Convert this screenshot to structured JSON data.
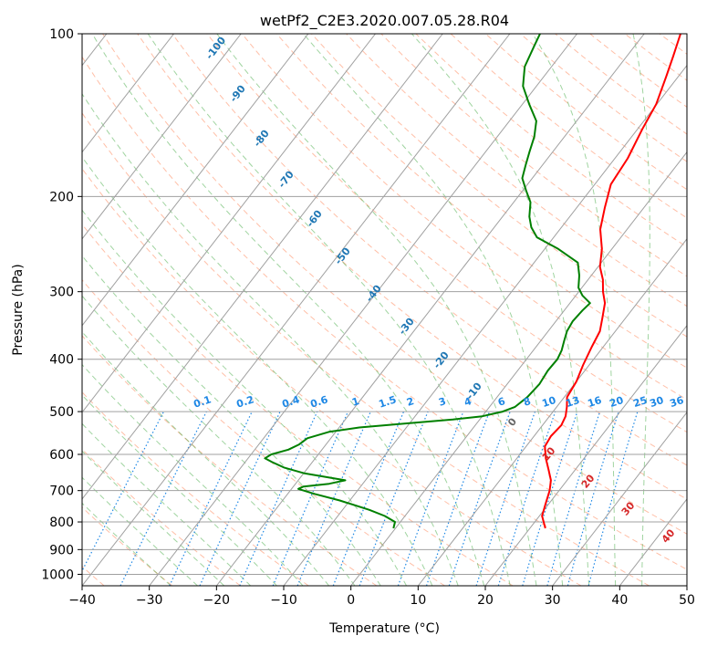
{
  "chart_data": {
    "type": "skew-t",
    "title": "wetPf2_C2E3.2020.007.05.28.R04",
    "xlabel": "Temperature (°C)",
    "ylabel": "Pressure (hPa)",
    "xlim": [
      -40,
      50
    ],
    "ylim": [
      1050,
      100
    ],
    "x_ticks": [
      "−40",
      "−30",
      "−20",
      "−10",
      "0",
      "10",
      "20",
      "30",
      "40",
      "50"
    ],
    "y_ticks": [
      "100",
      "200",
      "300",
      "400",
      "500",
      "600",
      "700",
      "800",
      "900",
      "1000"
    ],
    "grid": true,
    "colors": {
      "temperature": "#ff0000",
      "dewpoint": "#008000",
      "dry_adiabats": "#ff7f50",
      "moist_adiabats": "#2ca02c",
      "mixing_ratio": "#1e88e5",
      "isotherms": "#a0a0a0",
      "dry_label": "#1f77b4",
      "moist_label": "#d62728",
      "mixing_label": "#1e88e5"
    },
    "series": [
      {
        "key": "temperature",
        "points": [
          [
            822,
            22.3
          ],
          [
            780,
            20.4
          ],
          [
            740,
            19.5
          ],
          [
            700,
            18.6
          ],
          [
            670,
            17.6
          ],
          [
            640,
            16.0
          ],
          [
            610,
            14.3
          ],
          [
            580,
            12.8
          ],
          [
            555,
            12.5
          ],
          [
            530,
            12.8
          ],
          [
            510,
            12.4
          ],
          [
            490,
            11.5
          ],
          [
            470,
            10.4
          ],
          [
            440,
            10.0
          ],
          [
            410,
            9.1
          ],
          [
            380,
            8.3
          ],
          [
            355,
            7.7
          ],
          [
            335,
            6.5
          ],
          [
            315,
            5.2
          ],
          [
            300,
            3.6
          ],
          [
            285,
            2.2
          ],
          [
            270,
            0.3
          ],
          [
            250,
            -1.5
          ],
          [
            230,
            -4.0
          ],
          [
            210,
            -5.8
          ],
          [
            190,
            -7.6
          ],
          [
            170,
            -8.1
          ],
          [
            150,
            -9.3
          ],
          [
            135,
            -10.1
          ],
          [
            120,
            -11.8
          ],
          [
            110,
            -13.1
          ],
          [
            100,
            -14.6
          ]
        ]
      },
      {
        "key": "dewpoint",
        "points": [
          [
            822,
            -0.3
          ],
          [
            800,
            -0.8
          ],
          [
            780,
            -3.0
          ],
          [
            760,
            -6.0
          ],
          [
            730,
            -11.5
          ],
          [
            710,
            -16.0
          ],
          [
            695,
            -19.0
          ],
          [
            688,
            -18.5
          ],
          [
            680,
            -15.0
          ],
          [
            670,
            -13.0
          ],
          [
            660,
            -16.5
          ],
          [
            650,
            -20.0
          ],
          [
            635,
            -23.5
          ],
          [
            620,
            -26.0
          ],
          [
            610,
            -27.5
          ],
          [
            600,
            -27.0
          ],
          [
            588,
            -25.0
          ],
          [
            575,
            -24.0
          ],
          [
            560,
            -23.5
          ],
          [
            545,
            -21.0
          ],
          [
            535,
            -17.0
          ],
          [
            525,
            -10.0
          ],
          [
            517,
            -4.0
          ],
          [
            510,
            0.0
          ],
          [
            500,
            2.5
          ],
          [
            490,
            3.8
          ],
          [
            470,
            4.5
          ],
          [
            445,
            4.8
          ],
          [
            420,
            4.5
          ],
          [
            400,
            4.6
          ],
          [
            385,
            4.2
          ],
          [
            370,
            3.5
          ],
          [
            355,
            2.8
          ],
          [
            340,
            2.5
          ],
          [
            325,
            2.7
          ],
          [
            315,
            3.0
          ],
          [
            305,
            1.0
          ],
          [
            295,
            -0.5
          ],
          [
            280,
            -1.8
          ],
          [
            265,
            -3.5
          ],
          [
            250,
            -8.0
          ],
          [
            238,
            -12.5
          ],
          [
            228,
            -14.5
          ],
          [
            218,
            -16.0
          ],
          [
            205,
            -17.5
          ],
          [
            195,
            -19.5
          ],
          [
            185,
            -21.5
          ],
          [
            175,
            -22.5
          ],
          [
            165,
            -23.5
          ],
          [
            155,
            -24.5
          ],
          [
            145,
            -26.0
          ],
          [
            135,
            -29.0
          ],
          [
            125,
            -32.0
          ],
          [
            115,
            -34.0
          ],
          [
            105,
            -35.0
          ],
          [
            100,
            -35.5
          ]
        ]
      }
    ],
    "dry_adiabat_labels": [
      "-100",
      "-90",
      "-80",
      "-70",
      "-60",
      "-50",
      "-40",
      "-30",
      "-20",
      "-10",
      "0"
    ],
    "moist_adiabat_labels": [
      "10",
      "20",
      "30",
      "40"
    ],
    "mixing_ratio_labels": [
      "0.1",
      "0.2",
      "0.4",
      "0.6",
      "1",
      "1.5",
      "2",
      "3",
      "4",
      "6",
      "8",
      "10",
      "13",
      "16",
      "20",
      "25",
      "30",
      "36"
    ]
  }
}
